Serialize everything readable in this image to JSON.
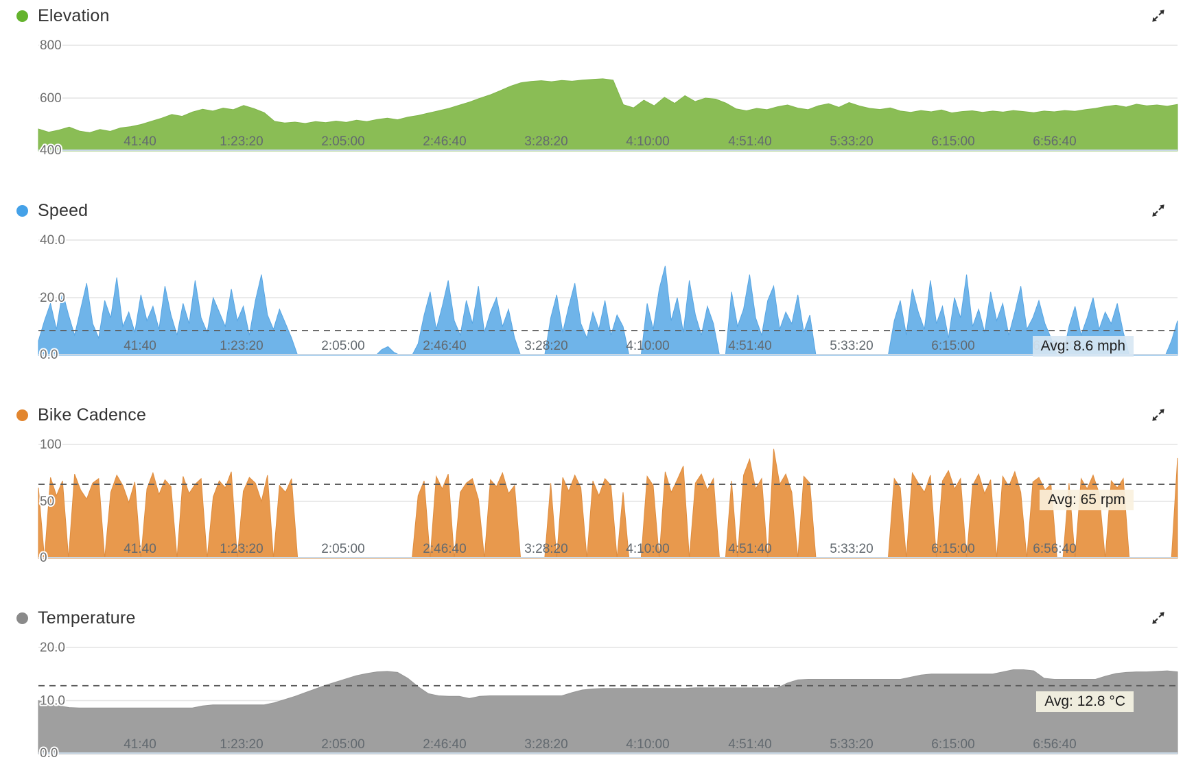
{
  "page": {
    "expand_icon": "expand-diagonal-arrows"
  },
  "chart_data": [
    {
      "type": "area",
      "title": "Elevation",
      "dot_color": "#64b32d",
      "fill_color": "#8abd55",
      "stroke_color": "#7fb54a",
      "ymin": 400,
      "ymax": 800,
      "yticks": [
        {
          "v": 800,
          "label": "800"
        },
        {
          "v": 600,
          "label": "600"
        },
        {
          "v": 400,
          "label": "400"
        }
      ],
      "x_labels": [
        "41:40",
        "1:23:20",
        "2:05:00",
        "2:46:40",
        "3:28:20",
        "4:10:00",
        "4:51:40",
        "5:33:20",
        "6:15:00",
        "6:56:40"
      ],
      "avg_value": null,
      "avg_label": null,
      "avg_bg": null,
      "values": [
        483,
        471,
        479,
        490,
        475,
        469,
        481,
        474,
        487,
        492,
        500,
        512,
        524,
        538,
        531,
        547,
        558,
        551,
        562,
        556,
        572,
        560,
        545,
        512,
        506,
        509,
        504,
        511,
        507,
        513,
        508,
        516,
        511,
        519,
        524,
        518,
        528,
        534,
        543,
        552,
        561,
        573,
        585,
        599,
        612,
        628,
        645,
        658,
        663,
        666,
        662,
        667,
        664,
        668,
        671,
        673,
        668,
        575,
        563,
        592,
        571,
        603,
        580,
        609,
        587,
        600,
        596,
        581,
        559,
        552,
        561,
        556,
        567,
        574,
        562,
        556,
        571,
        579,
        565,
        583,
        570,
        561,
        557,
        563,
        551,
        546,
        553,
        548,
        555,
        544,
        549,
        552,
        546,
        551,
        547,
        553,
        549,
        545,
        551,
        548,
        553,
        550,
        556,
        561,
        568,
        573,
        566,
        577,
        571,
        574,
        569,
        576
      ]
    },
    {
      "type": "area",
      "title": "Speed",
      "dot_color": "#44a1e8",
      "fill_color": "#6fb4e9",
      "stroke_color": "#57a5e3",
      "ymin": 0,
      "ymax": 40,
      "yticks": [
        {
          "v": 40,
          "label": "40.0"
        },
        {
          "v": 20,
          "label": "20.0"
        },
        {
          "v": 0,
          "label": "0.0"
        }
      ],
      "x_labels": [
        "41:40",
        "1:23:20",
        "2:05:00",
        "2:46:40",
        "3:28:20",
        "4:10:00",
        "4:51:40",
        "5:33:20",
        "6:15:00",
        "6:56:40"
      ],
      "avg_value": 8.6,
      "avg_label": "Avg: 8.6 mph",
      "avg_bg": "rgba(215,231,243,0.9)",
      "values": [
        5,
        12,
        18,
        9,
        22,
        14,
        7,
        16,
        25,
        11,
        6,
        19,
        13,
        27,
        10,
        15,
        8,
        21,
        12,
        17,
        9,
        24,
        14,
        7,
        18,
        11,
        26,
        13,
        8,
        20,
        15,
        10,
        23,
        12,
        17,
        7,
        19,
        28,
        14,
        9,
        16,
        11,
        6,
        0,
        0,
        0,
        0,
        0,
        0,
        0,
        0,
        0,
        0,
        0,
        0,
        0,
        0,
        2,
        3,
        1,
        0,
        0,
        0,
        4,
        14,
        22,
        9,
        17,
        26,
        12,
        7,
        19,
        11,
        24,
        8,
        15,
        20,
        10,
        16,
        6,
        0,
        0,
        0,
        0,
        0,
        13,
        21,
        8,
        17,
        25,
        11,
        6,
        15,
        9,
        19,
        7,
        14,
        10,
        0,
        0,
        0,
        18,
        9,
        23,
        31,
        12,
        20,
        8,
        26,
        14,
        7,
        17,
        11,
        0,
        0,
        22,
        10,
        16,
        28,
        13,
        7,
        19,
        24,
        9,
        15,
        11,
        21,
        8,
        14,
        0,
        0,
        0,
        0,
        0,
        0,
        0,
        0,
        0,
        0,
        0,
        0,
        0,
        12,
        19,
        7,
        23,
        15,
        9,
        26,
        11,
        17,
        6,
        20,
        13,
        28,
        10,
        16,
        8,
        22,
        12,
        18,
        7,
        15,
        24,
        9,
        13,
        19,
        11,
        6,
        0,
        0,
        10,
        17,
        7,
        13,
        20,
        9,
        15,
        11,
        18,
        8,
        0,
        0,
        0,
        0,
        0,
        0,
        0,
        5,
        12
      ]
    },
    {
      "type": "area",
      "title": "Bike Cadence",
      "dot_color": "#e2862f",
      "fill_color": "#e8994d",
      "stroke_color": "#de8c3e",
      "ymin": 0,
      "ymax": 100,
      "yticks": [
        {
          "v": 100,
          "label": "100"
        },
        {
          "v": 50,
          "label": "50"
        },
        {
          "v": 0,
          "label": "0"
        }
      ],
      "x_labels": [
        "41:40",
        "1:23:20",
        "2:05:00",
        "2:46:40",
        "3:28:20",
        "4:10:00",
        "4:51:40",
        "5:33:20",
        "6:15:00",
        "6:56:40"
      ],
      "avg_value": 65,
      "avg_label": "Avg: 65 rpm",
      "avg_bg": "rgba(250,241,222,0.9)",
      "values": [
        62,
        0,
        71,
        55,
        68,
        0,
        74,
        60,
        52,
        66,
        70,
        0,
        58,
        73,
        64,
        49,
        67,
        0,
        61,
        75,
        56,
        69,
        63,
        0,
        72,
        57,
        65,
        70,
        0,
        54,
        68,
        62,
        76,
        0,
        59,
        71,
        66,
        50,
        73,
        0,
        64,
        58,
        70,
        0,
        0,
        0,
        0,
        0,
        0,
        0,
        0,
        0,
        0,
        0,
        0,
        0,
        0,
        0,
        0,
        0,
        0,
        0,
        0,
        55,
        68,
        0,
        72,
        61,
        74,
        0,
        58,
        66,
        70,
        52,
        0,
        69,
        63,
        75,
        57,
        64,
        0,
        0,
        0,
        0,
        0,
        66,
        0,
        71,
        59,
        73,
        62,
        0,
        68,
        55,
        70,
        64,
        0,
        58,
        0,
        0,
        0,
        72,
        64,
        0,
        76,
        58,
        69,
        81,
        0,
        66,
        74,
        60,
        70,
        0,
        0,
        68,
        0,
        73,
        87,
        61,
        70,
        0,
        96,
        65,
        74,
        58,
        0,
        72,
        66,
        0,
        0,
        0,
        0,
        0,
        0,
        0,
        0,
        0,
        0,
        0,
        0,
        0,
        70,
        62,
        0,
        75,
        66,
        58,
        73,
        0,
        68,
        77,
        61,
        70,
        0,
        64,
        74,
        57,
        69,
        0,
        72,
        63,
        76,
        58,
        0,
        67,
        71,
        60,
        65,
        0,
        0,
        66,
        0,
        70,
        61,
        73,
        57,
        0,
        68,
        62,
        70,
        0,
        0,
        0,
        0,
        0,
        0,
        0,
        0,
        88
      ]
    },
    {
      "type": "area",
      "title": "Temperature",
      "dot_color": "#8a8a8a",
      "fill_color": "#9f9f9f",
      "stroke_color": "#969696",
      "ymin": 0,
      "ymax": 20,
      "yticks": [
        {
          "v": 20,
          "label": "20.0"
        },
        {
          "v": 10,
          "label": "10.0"
        },
        {
          "v": 0,
          "label": "0.0"
        }
      ],
      "x_labels": [
        "41:40",
        "1:23:20",
        "2:05:00",
        "2:46:40",
        "3:28:20",
        "4:10:00",
        "4:51:40",
        "5:33:20",
        "6:15:00",
        "6:56:40"
      ],
      "avg_value": 12.8,
      "avg_label": "Avg: 12.8 °C",
      "avg_bg": "rgba(243,241,226,0.95)",
      "values": [
        10.0,
        9.4,
        9.0,
        8.7,
        8.6,
        8.6,
        8.6,
        8.6,
        8.6,
        8.6,
        8.6,
        8.6,
        8.6,
        8.6,
        8.6,
        8.6,
        9.0,
        9.2,
        9.2,
        9.2,
        9.2,
        9.2,
        9.2,
        9.6,
        10.2,
        10.8,
        11.5,
        12.2,
        12.9,
        13.5,
        14.1,
        14.7,
        15.1,
        15.4,
        15.5,
        15.3,
        14.2,
        12.6,
        11.3,
        10.9,
        10.8,
        10.8,
        10.4,
        10.8,
        10.9,
        10.9,
        10.9,
        10.9,
        10.9,
        10.9,
        10.9,
        10.9,
        11.5,
        12.0,
        12.2,
        12.3,
        12.3,
        12.3,
        12.3,
        12.3,
        12.3,
        12.3,
        12.3,
        12.3,
        12.4,
        12.4,
        12.4,
        12.4,
        12.4,
        12.4,
        12.4,
        12.4,
        12.4,
        13.3,
        13.9,
        14.0,
        14.0,
        14.0,
        14.0,
        14.0,
        14.0,
        14.0,
        14.0,
        14.0,
        14.0,
        14.4,
        14.8,
        15.0,
        15.0,
        15.0,
        15.0,
        15.0,
        15.0,
        15.0,
        15.4,
        15.8,
        15.8,
        15.6,
        14.2,
        14.0,
        14.0,
        14.0,
        14.0,
        14.0,
        14.6,
        15.1,
        15.3,
        15.4,
        15.4,
        15.5,
        15.6,
        15.4
      ]
    }
  ]
}
